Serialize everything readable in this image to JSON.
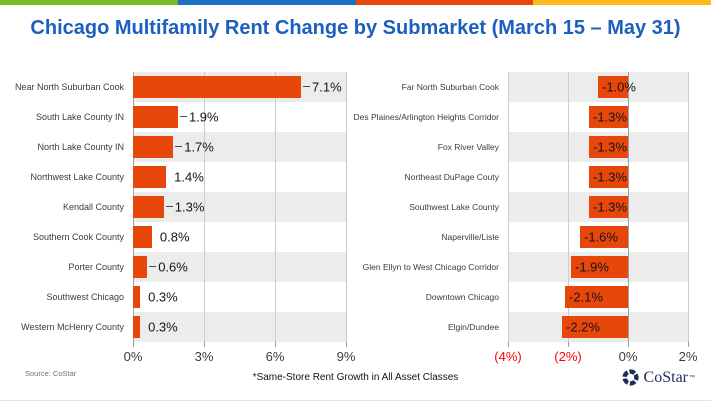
{
  "title": "Chicago Multifamily Rent Change by Submarket (March 15 – May 31)",
  "accent_strip": {
    "colors": [
      "#79B928",
      "#1D6FC8",
      "#E8470C",
      "#FDB81A"
    ]
  },
  "colors": {
    "bar": "#E8470C",
    "title": "#1B60BE",
    "band": "#ECECEC",
    "neg": "#FF0000",
    "navy": "#1F2C5C",
    "grid": "#CCCCCC",
    "axisline": "#A0A0A0"
  },
  "chart_data": [
    {
      "type": "bar",
      "orientation": "horizontal",
      "categories": [
        "Near North Suburban Cook",
        "South Lake County IN",
        "North Lake County IN",
        "Northwest Lake County",
        "Kendall County",
        "Southern Cook County",
        "Porter County",
        "Southwest Chicago",
        "Western McHenry County"
      ],
      "values": [
        7.1,
        1.9,
        1.7,
        1.4,
        1.3,
        0.8,
        0.6,
        0.3,
        0.3
      ],
      "value_labels": [
        "7.1%",
        "1.9%",
        "1.7%",
        "1.4%",
        "1.3%",
        "0.8%",
        "0.6%",
        "0.3%",
        "0.3%"
      ],
      "xlim": [
        0,
        9
      ],
      "ticks": [
        {
          "label": "0%",
          "value": 0
        },
        {
          "label": "3%",
          "value": 3
        },
        {
          "label": "6%",
          "value": 6
        },
        {
          "label": "9%",
          "value": 9
        }
      ],
      "gridlines": [
        {
          "value": 0,
          "strong": true
        },
        {
          "value": 3
        },
        {
          "value": 6
        },
        {
          "value": 9
        }
      ],
      "leader_rows": [
        0,
        1,
        2,
        4,
        6
      ],
      "band_rows": "even",
      "legend": "none"
    },
    {
      "type": "bar",
      "orientation": "horizontal",
      "categories": [
        "Far North Suburban Cook",
        "Des Plaines/Arlington Heights Corridor",
        "Fox River Valley",
        "Northeast DuPage Couty",
        "Southwest Lake County",
        "Naperville/Lisle",
        "Glen Ellyn to West Chicago Corridor",
        "Downtown Chicago",
        "Elgin/Dundee"
      ],
      "values": [
        -1.0,
        -1.3,
        -1.3,
        -1.3,
        -1.3,
        -1.6,
        -1.9,
        -2.1,
        -2.2
      ],
      "value_labels": [
        "-1.0%",
        "-1.3%",
        "-1.3%",
        "-1.3%",
        "-1.3%",
        "-1.6%",
        "-1.9%",
        "-2.1%",
        "-2.2%"
      ],
      "xlim": [
        -4,
        2
      ],
      "ticks": [
        {
          "label": "(4%)",
          "value": -4,
          "negative": true
        },
        {
          "label": "(2%)",
          "value": -2,
          "negative": true
        },
        {
          "label": "0%",
          "value": 0
        },
        {
          "label": "2%",
          "value": 2
        }
      ],
      "gridlines": [
        {
          "value": -4
        },
        {
          "value": -2
        },
        {
          "value": 0,
          "strong": true
        },
        {
          "value": 2
        }
      ],
      "leader_rows": [],
      "band_rows": "even",
      "legend": "none"
    }
  ],
  "footer": {
    "source": "Source: CoStar",
    "footnote": "*Same-Store Rent Growth in All Asset Classes",
    "logo_text": "CoStar",
    "logo_tm": "™"
  }
}
